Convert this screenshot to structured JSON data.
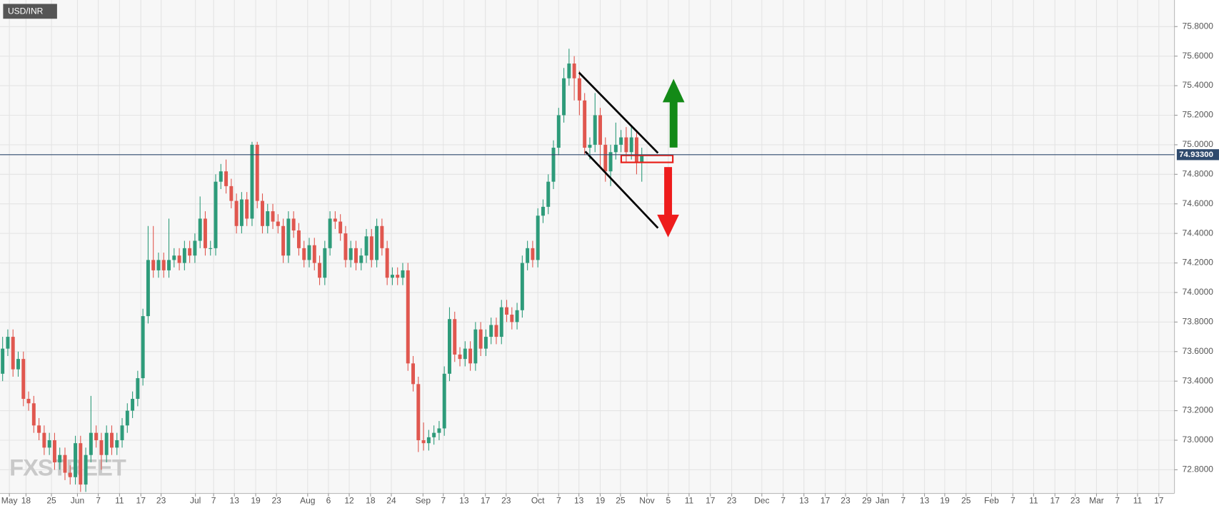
{
  "chart_data": {
    "type": "candlestick",
    "title": "USD/INR",
    "watermark": "FXSTREET",
    "grid": true,
    "up_color": "#2e9b7a",
    "down_color": "#e0574f",
    "x": [
      0,
      1,
      2,
      3,
      4,
      5,
      6,
      7,
      8,
      9,
      10,
      11,
      12,
      13,
      14,
      15,
      16,
      17,
      18,
      19,
      20,
      21,
      22,
      23,
      24,
      25,
      26,
      27,
      28,
      29,
      30,
      31,
      32,
      33,
      34,
      35,
      36,
      37,
      38,
      39,
      40,
      41,
      42,
      43,
      44,
      45,
      46,
      47,
      48,
      49,
      50,
      51,
      52,
      53,
      54,
      55,
      56,
      57,
      58,
      59,
      60,
      61,
      62,
      63,
      64,
      65,
      66,
      67,
      68,
      69,
      70,
      71,
      72,
      73,
      74,
      75,
      76,
      77,
      78,
      79,
      80,
      81,
      82,
      83,
      84,
      85,
      86,
      87,
      88,
      89,
      90,
      91,
      92,
      93,
      94,
      95,
      96,
      97,
      98,
      99,
      100,
      101,
      102,
      103,
      104,
      105,
      106,
      107,
      108,
      109,
      110,
      111,
      112,
      113,
      114,
      115,
      116,
      117,
      118,
      119,
      120,
      121,
      122,
      123
    ],
    "open": [
      73.45,
      73.62,
      73.7,
      73.48,
      73.55,
      73.28,
      73.25,
      73.1,
      73.05,
      72.95,
      73.0,
      72.85,
      72.9,
      72.78,
      72.75,
      72.98,
      72.7,
      72.9,
      73.05,
      73.0,
      72.9,
      73.05,
      72.95,
      73.0,
      73.1,
      73.2,
      73.28,
      73.42,
      73.84,
      74.22,
      74.15,
      74.22,
      74.15,
      74.22,
      74.25,
      74.2,
      74.3,
      74.25,
      74.35,
      74.5,
      74.3,
      74.3,
      74.75,
      74.82,
      74.72,
      74.62,
      74.45,
      74.63,
      74.5,
      75.0,
      74.62,
      74.45,
      74.55,
      74.48,
      74.45,
      74.25,
      74.5,
      74.42,
      74.3,
      74.22,
      74.32,
      74.2,
      74.1,
      74.3,
      74.5,
      74.48,
      74.4,
      74.22,
      74.3,
      74.2,
      74.25,
      74.38,
      74.22,
      74.45,
      74.3,
      74.1,
      74.12,
      74.1,
      74.15,
      73.52,
      73.38,
      73.0,
      72.98,
      73.02,
      73.05,
      73.08,
      73.45,
      73.82,
      73.58,
      73.55,
      73.62,
      73.52,
      73.75,
      73.62,
      73.7,
      73.78,
      73.7,
      73.9,
      73.85,
      73.8,
      73.88,
      74.2,
      74.3,
      74.22,
      74.52,
      74.58,
      74.75,
      74.98,
      75.2,
      75.45,
      75.55,
      75.45,
      75.3,
      74.98,
      75.0,
      75.2,
      75.0,
      74.82,
      74.95,
      75.0,
      75.05,
      74.95,
      75.05,
      74.88
    ],
    "high": [
      73.7,
      73.75,
      73.75,
      73.6,
      73.6,
      73.33,
      73.3,
      73.15,
      73.1,
      73.05,
      73.05,
      72.95,
      72.95,
      72.83,
      73.03,
      73.03,
      72.95,
      73.3,
      73.1,
      73.05,
      73.1,
      73.1,
      73.05,
      73.15,
      73.25,
      73.33,
      73.47,
      73.89,
      74.45,
      74.45,
      74.27,
      74.27,
      74.5,
      74.3,
      74.3,
      74.35,
      74.35,
      74.4,
      74.65,
      74.55,
      74.35,
      74.8,
      74.87,
      74.9,
      74.77,
      74.67,
      74.68,
      74.68,
      75.02,
      75.02,
      74.67,
      74.6,
      74.6,
      74.53,
      74.5,
      74.55,
      74.55,
      74.47,
      74.35,
      74.37,
      74.37,
      74.25,
      74.35,
      74.55,
      74.55,
      74.53,
      74.45,
      74.35,
      74.35,
      74.3,
      74.43,
      74.43,
      74.5,
      74.5,
      74.35,
      74.17,
      74.17,
      74.2,
      74.2,
      73.57,
      73.43,
      73.12,
      73.07,
      73.1,
      73.13,
      73.5,
      73.9,
      73.87,
      73.63,
      73.67,
      73.67,
      73.8,
      73.8,
      73.75,
      73.83,
      73.83,
      73.95,
      73.95,
      73.9,
      73.93,
      74.25,
      74.35,
      74.35,
      74.57,
      74.63,
      74.8,
      75.03,
      75.25,
      75.52,
      75.65,
      75.6,
      75.5,
      75.35,
      75.05,
      75.35,
      75.25,
      75.05,
      75.0,
      75.15,
      75.1,
      75.12,
      75.12,
      75.1,
      74.98
    ],
    "low": [
      73.4,
      73.57,
      73.43,
      73.43,
      73.23,
      73.2,
      73.05,
      73.0,
      72.9,
      72.9,
      72.8,
      72.8,
      72.73,
      72.7,
      72.7,
      72.65,
      72.65,
      72.85,
      72.95,
      72.8,
      72.85,
      72.9,
      72.9,
      72.95,
      73.05,
      73.15,
      73.23,
      73.37,
      73.79,
      74.1,
      74.1,
      74.1,
      74.1,
      74.17,
      74.15,
      74.15,
      74.2,
      74.2,
      74.3,
      74.25,
      74.25,
      74.25,
      74.7,
      74.67,
      74.57,
      74.4,
      74.4,
      74.45,
      74.45,
      74.57,
      74.4,
      74.4,
      74.43,
      74.4,
      74.2,
      74.2,
      74.37,
      74.25,
      74.17,
      74.17,
      74.15,
      74.05,
      74.05,
      74.25,
      74.43,
      74.35,
      74.17,
      74.17,
      74.15,
      74.15,
      74.2,
      74.17,
      74.17,
      74.25,
      74.05,
      74.05,
      74.05,
      74.05,
      73.47,
      73.33,
      72.92,
      72.93,
      72.93,
      72.97,
      73.0,
      73.03,
      73.4,
      73.53,
      73.5,
      73.5,
      73.47,
      73.47,
      73.57,
      73.57,
      73.65,
      73.65,
      73.65,
      73.8,
      73.75,
      73.75,
      73.83,
      74.15,
      74.17,
      74.17,
      74.47,
      74.53,
      74.7,
      74.93,
      75.15,
      75.4,
      75.3,
      75.2,
      74.93,
      74.9,
      74.95,
      74.85,
      74.75,
      74.72,
      74.9,
      74.95,
      74.88,
      74.9,
      74.8,
      74.75
    ],
    "close": [
      73.62,
      73.7,
      73.48,
      73.55,
      73.28,
      73.25,
      73.1,
      73.05,
      72.95,
      73.0,
      72.85,
      72.9,
      72.78,
      72.75,
      72.98,
      72.7,
      72.9,
      73.05,
      73.0,
      72.9,
      73.05,
      72.95,
      73.0,
      73.1,
      73.2,
      73.28,
      73.42,
      73.84,
      74.22,
      74.15,
      74.22,
      74.15,
      74.22,
      74.25,
      74.2,
      74.3,
      74.25,
      74.35,
      74.5,
      74.3,
      74.3,
      74.75,
      74.82,
      74.72,
      74.62,
      74.45,
      74.63,
      74.5,
      75.0,
      74.62,
      74.45,
      74.55,
      74.48,
      74.45,
      74.25,
      74.5,
      74.42,
      74.3,
      74.22,
      74.32,
      74.2,
      74.1,
      74.3,
      74.5,
      74.48,
      74.4,
      74.22,
      74.3,
      74.2,
      74.25,
      74.38,
      74.22,
      74.45,
      74.3,
      74.1,
      74.12,
      74.1,
      74.15,
      73.52,
      73.38,
      73.0,
      72.98,
      73.02,
      73.05,
      73.08,
      73.45,
      73.82,
      73.58,
      73.55,
      73.62,
      73.52,
      73.75,
      73.62,
      73.7,
      73.78,
      73.7,
      73.9,
      73.85,
      73.8,
      73.88,
      74.2,
      74.3,
      74.22,
      74.52,
      74.58,
      74.75,
      74.98,
      75.2,
      75.45,
      75.55,
      75.45,
      75.3,
      74.98,
      75.0,
      75.2,
      75.0,
      74.82,
      74.95,
      75.0,
      75.05,
      74.95,
      75.05,
      74.88,
      74.93
    ],
    "xlim": [
      -0.5,
      225.5
    ],
    "xticks": [
      {
        "value": 1.3,
        "label": "May"
      },
      {
        "value": 4.5,
        "label": "18"
      },
      {
        "value": 9.4,
        "label": "25"
      },
      {
        "value": 14.4,
        "label": "Jun"
      },
      {
        "value": 18.4,
        "label": "7"
      },
      {
        "value": 22.5,
        "label": "11"
      },
      {
        "value": 26.6,
        "label": "17"
      },
      {
        "value": 30.5,
        "label": "23"
      },
      {
        "value": 37.1,
        "label": "Jul"
      },
      {
        "value": 40.6,
        "label": "7"
      },
      {
        "value": 44.6,
        "label": "13"
      },
      {
        "value": 48.7,
        "label": "19"
      },
      {
        "value": 52.7,
        "label": "23"
      },
      {
        "value": 58.7,
        "label": "Aug"
      },
      {
        "value": 62.7,
        "label": "6"
      },
      {
        "value": 66.7,
        "label": "12"
      },
      {
        "value": 70.8,
        "label": "18"
      },
      {
        "value": 74.8,
        "label": "24"
      },
      {
        "value": 80.9,
        "label": "Sep"
      },
      {
        "value": 84.8,
        "label": "7"
      },
      {
        "value": 88.8,
        "label": "13"
      },
      {
        "value": 92.9,
        "label": "17"
      },
      {
        "value": 96.9,
        "label": "23"
      },
      {
        "value": 103,
        "label": "Oct"
      },
      {
        "value": 107,
        "label": "7"
      },
      {
        "value": 110.9,
        "label": "13"
      },
      {
        "value": 115,
        "label": "19"
      },
      {
        "value": 118.9,
        "label": "25"
      },
      {
        "value": 124,
        "label": "Nov"
      },
      {
        "value": 128.1,
        "label": "5"
      },
      {
        "value": 132.1,
        "label": "11"
      },
      {
        "value": 136.2,
        "label": "17"
      },
      {
        "value": 140.3,
        "label": "23"
      },
      {
        "value": 146.1,
        "label": "Dec"
      },
      {
        "value": 150.2,
        "label": "7"
      },
      {
        "value": 154.2,
        "label": "13"
      },
      {
        "value": 158.3,
        "label": "17"
      },
      {
        "value": 162.2,
        "label": "23"
      },
      {
        "value": 166.3,
        "label": "29"
      },
      {
        "value": 169.3,
        "label": "Jan"
      },
      {
        "value": 173.3,
        "label": "7"
      },
      {
        "value": 177.4,
        "label": "13"
      },
      {
        "value": 181.3,
        "label": "19"
      },
      {
        "value": 185.4,
        "label": "25"
      },
      {
        "value": 190.3,
        "label": "Feb"
      },
      {
        "value": 194.4,
        "label": "7"
      },
      {
        "value": 198.4,
        "label": "11"
      },
      {
        "value": 202.5,
        "label": "17"
      },
      {
        "value": 206.4,
        "label": "23"
      },
      {
        "value": 210.5,
        "label": "Mar"
      },
      {
        "value": 214.5,
        "label": "7"
      },
      {
        "value": 218.4,
        "label": "11"
      },
      {
        "value": 222.5,
        "label": "17"
      }
    ],
    "ylim": [
      72.64,
      75.98
    ],
    "yticks": [
      {
        "value": 72.8,
        "label": "72.8000"
      },
      {
        "value": 73.0,
        "label": "73.0000"
      },
      {
        "value": 73.2,
        "label": "73.2000"
      },
      {
        "value": 73.4,
        "label": "73.4000"
      },
      {
        "value": 73.6,
        "label": "73.6000"
      },
      {
        "value": 73.8,
        "label": "73.8000"
      },
      {
        "value": 74.0,
        "label": "74.0000"
      },
      {
        "value": 74.2,
        "label": "74.2000"
      },
      {
        "value": 74.4,
        "label": "74.4000"
      },
      {
        "value": 74.6,
        "label": "74.6000"
      },
      {
        "value": 74.8,
        "label": "74.8000"
      },
      {
        "value": 75.0,
        "label": "75.0000"
      },
      {
        "value": 75.2,
        "label": "75.2000"
      },
      {
        "value": 75.4,
        "label": "75.4000"
      },
      {
        "value": 75.6,
        "label": "75.6000"
      },
      {
        "value": 75.8,
        "label": "75.8000"
      }
    ],
    "last_price": {
      "value": 74.933,
      "label": "74.93300"
    }
  }
}
